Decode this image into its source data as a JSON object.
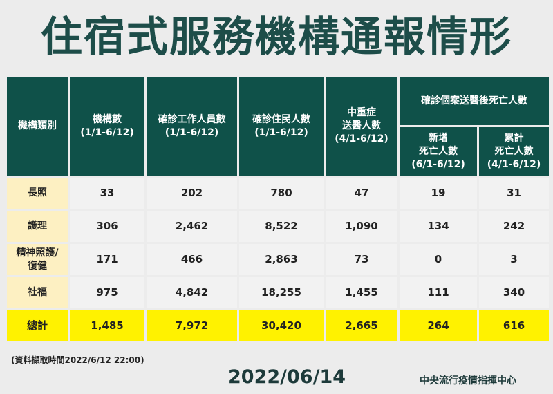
{
  "title": "住宿式服務機構通報情形",
  "headers": {
    "category": "機構類別",
    "institutions": [
      "機構數",
      "(1/1-6/12)"
    ],
    "staff": [
      "確診工作人員數",
      "(1/1-6/12)"
    ],
    "residents": [
      "確診住民人數",
      "(1/1-6/12)"
    ],
    "severe": [
      "中重症",
      "送醫人數",
      "(4/1-6/12)"
    ],
    "deaths_group": "確診個案送醫後死亡人數",
    "new_deaths": [
      "新增",
      "死亡人數",
      "(6/1-6/12)"
    ],
    "cum_deaths": [
      "累計",
      "死亡人數",
      "(4/1-6/12)"
    ]
  },
  "rows": [
    {
      "category": "長照",
      "values": [
        "33",
        "202",
        "780",
        "47",
        "19",
        "31"
      ]
    },
    {
      "category": "護理",
      "values": [
        "306",
        "2,462",
        "8,522",
        "1,090",
        "134",
        "242"
      ]
    },
    {
      "category": "精神照護/\n復健",
      "cat_lines": [
        "精神照護/",
        "復健"
      ],
      "values": [
        "171",
        "466",
        "2,863",
        "73",
        "0",
        "3"
      ]
    },
    {
      "category": "社福",
      "values": [
        "975",
        "4,842",
        "18,255",
        "1,455",
        "111",
        "340"
      ]
    }
  ],
  "total": {
    "category": "總計",
    "values": [
      "1,485",
      "7,972",
      "30,420",
      "2,665",
      "264",
      "616"
    ]
  },
  "note": "(資料擷取時間2022/6/12 22:00)",
  "date": "2022/06/14",
  "org": "中央流行疫情指揮中心"
}
